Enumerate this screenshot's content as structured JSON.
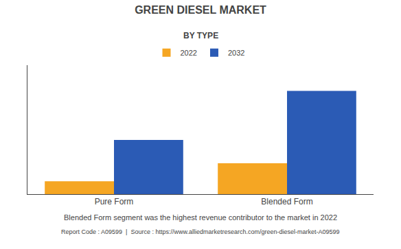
{
  "chart_data": {
    "type": "bar",
    "title": "GREEN DIESEL MARKET",
    "subtitle": "BY TYPE",
    "categories": [
      "Pure Form",
      "Blended Form"
    ],
    "series": [
      {
        "name": "2022",
        "color": "#F5A623",
        "values": [
          1.0,
          2.4
        ]
      },
      {
        "name": "2032",
        "color": "#2B5BB5",
        "values": [
          4.2,
          8.0
        ]
      }
    ],
    "ylim": [
      0,
      10
    ],
    "grid": false,
    "tick_labels": "x",
    "annotations": [
      "Blended Form segment was the highest revenue contributor to the market in 2022",
      "Report Code : A09599  |  Source : https://www.alliedmarketresearch.com/green-diesel-market-A09599"
    ]
  }
}
